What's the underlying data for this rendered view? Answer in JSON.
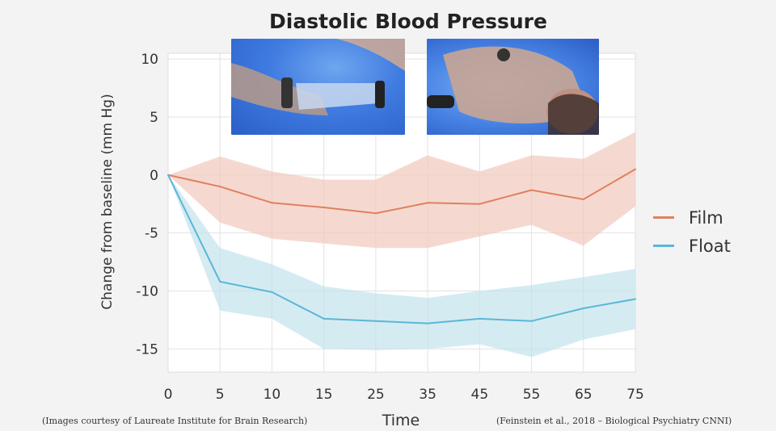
{
  "chart_data": {
    "type": "line",
    "title": "Diastolic Blood Pressure",
    "xlabel": "Time",
    "ylabel": "Change from baseline (mm Hg)",
    "x": [
      0,
      5,
      10,
      15,
      25,
      35,
      45,
      55,
      65,
      75
    ],
    "x_tick_labels": [
      "0",
      "5",
      "10",
      "15",
      "25",
      "35",
      "45",
      "55",
      "65",
      "75"
    ],
    "y_ticks": [
      10,
      5,
      0,
      -5,
      -10,
      -15
    ],
    "y_tick_labels": [
      "10",
      "5",
      "0",
      "-5",
      "-10",
      "-15"
    ],
    "ylim": [
      -17,
      10.5
    ],
    "grid": true,
    "legend_position": "right",
    "series": [
      {
        "name": "Film",
        "color": "#e0805e",
        "band_color": "#f1c9bc",
        "values": [
          0,
          -1.0,
          -2.4,
          -2.8,
          -3.3,
          -2.4,
          -2.5,
          -1.3,
          -2.1,
          0.5
        ],
        "upper": [
          0,
          1.6,
          0.3,
          -0.4,
          -0.4,
          1.7,
          0.3,
          1.7,
          1.4,
          3.7
        ],
        "lower": [
          0,
          -4.1,
          -5.5,
          -5.9,
          -6.3,
          -6.3,
          -5.3,
          -4.3,
          -6.1,
          -2.7
        ]
      },
      {
        "name": "Float",
        "color": "#5ab7d6",
        "band_color": "#c3e2ec",
        "values": [
          0,
          -9.2,
          -10.1,
          -12.4,
          -12.6,
          -12.8,
          -12.4,
          -12.6,
          -11.5,
          -10.7
        ],
        "upper": [
          0,
          -6.3,
          -7.7,
          -9.6,
          -10.2,
          -10.6,
          -10.0,
          -9.5,
          -8.8,
          -8.1
        ],
        "lower": [
          0,
          -11.7,
          -12.4,
          -15.0,
          -15.1,
          -15.0,
          -14.6,
          -15.7,
          -14.2,
          -13.3
        ]
      }
    ]
  },
  "footnotes": {
    "left": "(Images courtesy of Laureate Institute for Brain Research)",
    "right": "(Feinstein et al., 2018 – Biological Psychiatry CNNI)"
  }
}
